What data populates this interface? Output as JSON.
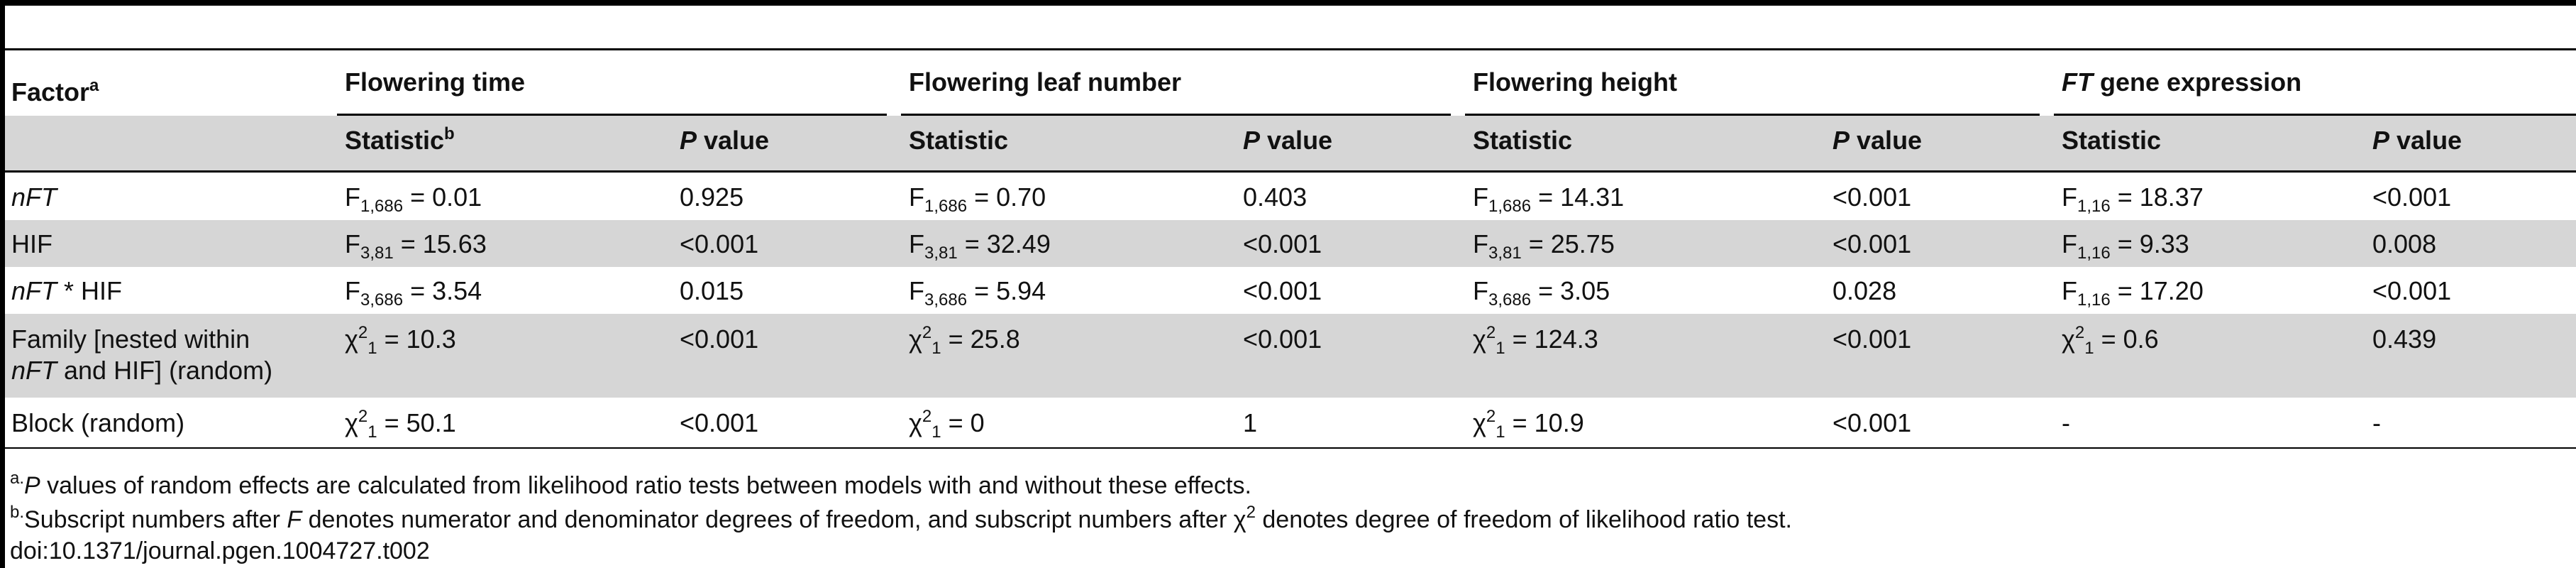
{
  "table": {
    "groups": [
      {
        "pre_italic": "",
        "label": "Flowering time"
      },
      {
        "pre_italic": "",
        "label": "Flowering leaf number"
      },
      {
        "pre_italic": "",
        "label": "Flowering height"
      },
      {
        "pre_italic": "FT",
        "label": " gene expression"
      }
    ],
    "factor_header": {
      "label": "Factor",
      "sup": "a"
    },
    "subheaders": [
      {
        "label": "Statistic",
        "sup": "b",
        "italic_prefix": ""
      },
      {
        "label": " value",
        "sup": "",
        "italic_prefix": "P"
      },
      {
        "label": "Statistic",
        "sup": "",
        "italic_prefix": ""
      },
      {
        "label": " value",
        "sup": "",
        "italic_prefix": "P"
      },
      {
        "label": "Statistic",
        "sup": "",
        "italic_prefix": ""
      },
      {
        "label": " value",
        "sup": "",
        "italic_prefix": "P"
      },
      {
        "label": "Statistic",
        "sup": "",
        "italic_prefix": ""
      },
      {
        "label": " value",
        "sup": "",
        "italic_prefix": "P"
      }
    ],
    "rows": [
      {
        "factor": {
          "italic": "nFT",
          "rest": "",
          "line2_italic": "",
          "line2_rest": ""
        },
        "cells": [
          {
            "sym": "F",
            "sub": "1,686",
            "sup": "",
            "val": " = 0.01"
          },
          {
            "p": "0.925"
          },
          {
            "sym": "F",
            "sub": "1,686",
            "sup": "",
            "val": " = 0.70"
          },
          {
            "p": "0.403"
          },
          {
            "sym": "F",
            "sub": "1,686",
            "sup": "",
            "val": " = 14.31"
          },
          {
            "p": "<0.001"
          },
          {
            "sym": "F",
            "sub": "1,16",
            "sup": "",
            "val": " = 18.37"
          },
          {
            "p": "<0.001"
          }
        ]
      },
      {
        "factor": {
          "italic": "",
          "rest": "HIF",
          "line2_italic": "",
          "line2_rest": ""
        },
        "cells": [
          {
            "sym": "F",
            "sub": "3,81",
            "sup": "",
            "val": " = 15.63"
          },
          {
            "p": "<0.001"
          },
          {
            "sym": "F",
            "sub": "3,81",
            "sup": "",
            "val": " = 32.49"
          },
          {
            "p": "<0.001"
          },
          {
            "sym": "F",
            "sub": "3,81",
            "sup": "",
            "val": " = 25.75"
          },
          {
            "p": "<0.001"
          },
          {
            "sym": "F",
            "sub": "1,16",
            "sup": "",
            "val": " = 9.33"
          },
          {
            "p": "0.008"
          }
        ]
      },
      {
        "factor": {
          "italic": "nFT",
          "rest": " * HIF",
          "line2_italic": "",
          "line2_rest": ""
        },
        "cells": [
          {
            "sym": "F",
            "sub": "3,686",
            "sup": "",
            "val": " = 3.54"
          },
          {
            "p": "0.015"
          },
          {
            "sym": "F",
            "sub": "3,686",
            "sup": "",
            "val": " = 5.94"
          },
          {
            "p": "<0.001"
          },
          {
            "sym": "F",
            "sub": "3,686",
            "sup": "",
            "val": " = 3.05"
          },
          {
            "p": "0.028"
          },
          {
            "sym": "F",
            "sub": "1,16",
            "sup": "",
            "val": " = 17.20"
          },
          {
            "p": "<0.001"
          }
        ]
      },
      {
        "factor": {
          "italic": "",
          "rest": "Family [nested within",
          "line2_italic": "nFT",
          "line2_rest": " and HIF] (random)"
        },
        "cells": [
          {
            "sym": "χ",
            "sub": "1",
            "sup": "2",
            "val": " = 10.3"
          },
          {
            "p": "<0.001"
          },
          {
            "sym": "χ",
            "sub": "1",
            "sup": "2",
            "val": " = 25.8"
          },
          {
            "p": "<0.001"
          },
          {
            "sym": "χ",
            "sub": "1",
            "sup": "2",
            "val": " = 124.3"
          },
          {
            "p": "<0.001"
          },
          {
            "sym": "χ",
            "sub": "1",
            "sup": "2",
            "val": " = 0.6"
          },
          {
            "p": "0.439"
          }
        ]
      },
      {
        "factor": {
          "italic": "",
          "rest": "Block (random)",
          "line2_italic": "",
          "line2_rest": ""
        },
        "cells": [
          {
            "sym": "χ",
            "sub": "1",
            "sup": "2",
            "val": " = 50.1"
          },
          {
            "p": "<0.001"
          },
          {
            "sym": "χ",
            "sub": "1",
            "sup": "2",
            "val": " = 0"
          },
          {
            "p": "1"
          },
          {
            "sym": "χ",
            "sub": "1",
            "sup": "2",
            "val": " = 10.9"
          },
          {
            "p": "<0.001"
          },
          {
            "sym": "",
            "sub": "",
            "sup": "",
            "val": "-"
          },
          {
            "p": "-"
          }
        ]
      }
    ]
  },
  "footnotes": {
    "a": {
      "mark": "a.",
      "italic": "P",
      "text": " values of random effects are calculated from likelihood ratio tests between models with and without these effects."
    },
    "b": {
      "mark": "b.",
      "t1": "Subscript numbers after ",
      "italic": "F",
      "t2": " denotes numerator and denominator degrees of freedom, and subscript numbers after χ",
      "sup": "2",
      "t3": " denotes degree of freedom of likelihood ratio test."
    },
    "doi": "doi:10.1371/journal.pgen.1004727.t002"
  }
}
